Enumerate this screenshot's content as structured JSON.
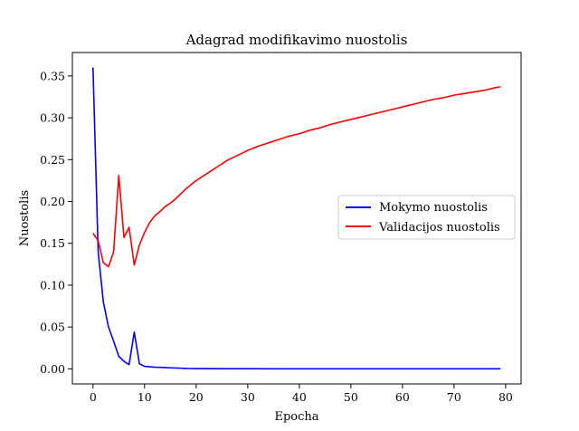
{
  "chart_data": {
    "type": "line",
    "title": "Adagrad modifikavimo nuostolis",
    "xlabel": "Epocha",
    "ylabel": "Nuostolis",
    "xlim": [
      -4,
      83
    ],
    "ylim": [
      -0.018,
      0.378
    ],
    "xticks": [
      0,
      10,
      20,
      30,
      40,
      50,
      60,
      70,
      80
    ],
    "yticks": [
      0.0,
      0.05,
      0.1,
      0.15,
      0.2,
      0.25,
      0.3,
      0.35
    ],
    "ytick_labels": [
      "0.00",
      "0.05",
      "0.10",
      "0.15",
      "0.20",
      "0.25",
      "0.30",
      "0.35"
    ],
    "grid": false,
    "legend_position": "center-right",
    "series": [
      {
        "name": "Mokymo nuostolis",
        "color": "#0000ff",
        "x": [
          0,
          1,
          2,
          3,
          4,
          5,
          6,
          7,
          8,
          9,
          10,
          11,
          12,
          13,
          14,
          15,
          16,
          17,
          18,
          19,
          20,
          25,
          30,
          35,
          40,
          45,
          50,
          55,
          60,
          65,
          70,
          75,
          79
        ],
        "y": [
          0.36,
          0.14,
          0.08,
          0.05,
          0.033,
          0.015,
          0.009,
          0.005,
          0.044,
          0.006,
          0.003,
          0.0025,
          0.002,
          0.0018,
          0.0015,
          0.0012,
          0.001,
          0.0008,
          0.0005,
          0.0004,
          0.0003,
          0.0002,
          0.0002,
          0.0001,
          0.0001,
          0.0001,
          0.0001,
          0.0001,
          0.0001,
          0.0001,
          0.0001,
          0.0001,
          0.0001
        ]
      },
      {
        "name": "Validacijos nuostolis",
        "color": "#ff0000",
        "x": [
          0,
          1,
          2,
          3,
          4,
          5,
          6,
          7,
          8,
          9,
          10,
          11,
          12,
          13,
          14,
          15,
          16,
          17,
          18,
          19,
          20,
          21,
          22,
          23,
          24,
          25,
          26,
          27,
          28,
          29,
          30,
          32,
          34,
          36,
          38,
          40,
          42,
          44,
          46,
          48,
          50,
          52,
          54,
          56,
          58,
          60,
          62,
          64,
          66,
          68,
          70,
          72,
          74,
          76,
          78,
          79
        ],
        "y": [
          0.162,
          0.153,
          0.127,
          0.122,
          0.14,
          0.231,
          0.157,
          0.169,
          0.124,
          0.148,
          0.163,
          0.175,
          0.183,
          0.188,
          0.194,
          0.198,
          0.203,
          0.209,
          0.215,
          0.22,
          0.225,
          0.229,
          0.233,
          0.237,
          0.241,
          0.245,
          0.249,
          0.252,
          0.255,
          0.258,
          0.261,
          0.266,
          0.27,
          0.274,
          0.278,
          0.281,
          0.285,
          0.288,
          0.292,
          0.295,
          0.298,
          0.301,
          0.304,
          0.307,
          0.31,
          0.313,
          0.316,
          0.319,
          0.322,
          0.324,
          0.327,
          0.329,
          0.331,
          0.333,
          0.336,
          0.337
        ]
      }
    ]
  }
}
